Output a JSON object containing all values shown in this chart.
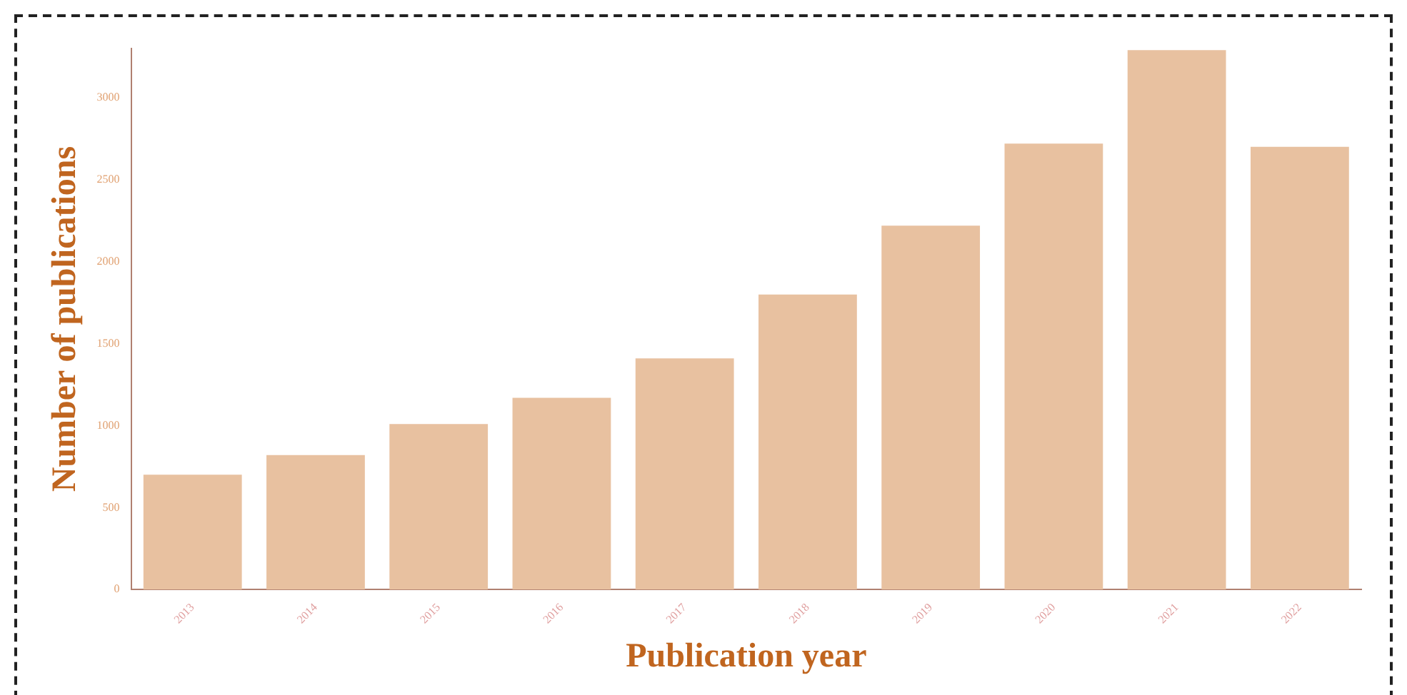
{
  "chart_data": {
    "type": "bar",
    "xlabel": "Publication year",
    "ylabel": "Number of publications",
    "categories": [
      "2013",
      "2014",
      "2015",
      "2016",
      "2017",
      "2018",
      "2019",
      "2020",
      "2021",
      "2022"
    ],
    "values": [
      700,
      820,
      1010,
      1170,
      1410,
      1800,
      2220,
      2720,
      3290,
      2700
    ],
    "color": "#e8c1a0",
    "ylim": [
      0,
      3300
    ],
    "yticks": [
      0,
      500,
      1000,
      1500,
      2000,
      2500,
      3000
    ],
    "grid": false,
    "legend": false
  }
}
